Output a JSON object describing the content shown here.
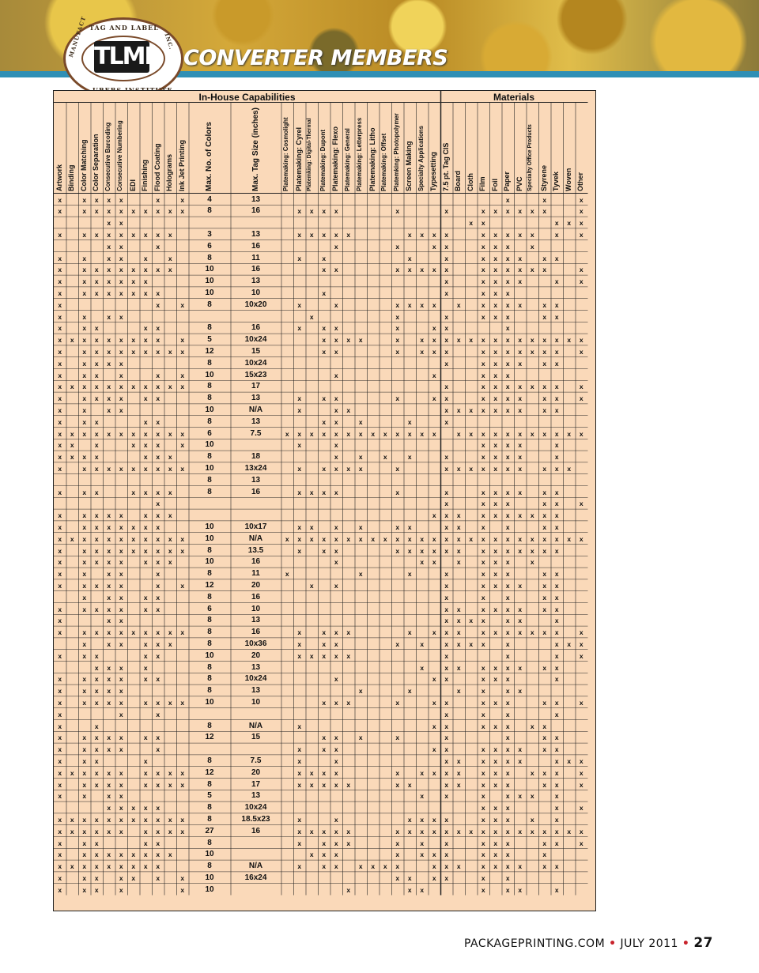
{
  "header": {
    "title": "CONVERTER MEMBERS",
    "logo_top": "TAG AND LABEL",
    "logo_bottom": "URERS INSTITUTE",
    "logo_left": "MANUFACT",
    "logo_right": "INC.",
    "logo_mark": "TLMI"
  },
  "table": {
    "group_capabilities": "In-House Capabilities",
    "group_materials": "Materials",
    "columns": [
      "Artwork",
      "Binding",
      "Color Matching",
      "Color Separation",
      "Consecutive Barcoding",
      "Consecutive Numbering",
      "EDI",
      "Finishing",
      "Flood Coating",
      "Holograms",
      "Ink Jet Printing",
      "Max. No. of Colors",
      "Max. Tag Size (inches)",
      "Platemaking: Cosmolight",
      "Platemaking: Cyrel",
      "Platemking: Digital-Thermal",
      "Platemaking: Dupont",
      "Platemaking: Flexo",
      "Platemaking: General",
      "Platemaking: Letterpress",
      "Platemaking: Litho",
      "Platemaking: Offset",
      "Platemking: Photopolymer",
      "Screen Making",
      "Specialty Applications",
      "Typesetting",
      "7.5 pt. Tag CIS",
      "Board",
      "Cloth",
      "Film",
      "Foil",
      "Paper",
      "PVC",
      "Specialty Office Products",
      "Styrene",
      "Tyvek",
      "Woven",
      "Other"
    ],
    "rows": [
      "x,,x,x,x,x,,,x,,x,4,13,,,,,,,,,,,,,,,,,,,x,,,x,,,x",
      "x,,x,x,x,x,x,x,x,x,x,8,16,,x,x,x,x,,,,,x,,,,x,,,x,x,x,x,x,x,,,x",
      ",,,,x,x,,,,,,,,,,,,,,,,,,,,,,,x,x,,,,,,x,x,x",
      "x,,x,x,x,x,x,x,x,x,,3,13,,x,x,x,x,x,,,,,x,x,x,x,,,x,x,x,x,x,,x,,x",
      ",,,,x,x,,,x,,,6,16,,,,,x,,,,,x,,,x,x,,,x,x,x,,x,,,,",
      "x,,x,,x,x,,x,,x,,8,11,,x,,x,,,,,,,x,,,x,,,x,x,x,x,,x,x,,",
      "x,,x,x,x,x,x,x,x,x,,10,16,,,,x,x,,,,,x,x,x,x,x,,,x,x,x,x,x,x,,,x",
      "x,,x,x,x,x,x,x,,,,10,13,,,,,,,,,,,,,,x,,,x,x,x,x,,,x,,x",
      "x,,x,x,x,x,x,x,x,,,10,10,,,,x,,,,,,,,,,x,,,x,x,x,,,,,,",
      "x,,,,,,,,x,,x,8,10x20,,x,,,x,,,,,x,x,x,x,,x,,x,x,x,x,,x,x,,",
      "x,,x,,x,x,,,,,,,,,,x,,,,,,,x,,,,x,,,x,x,x,,,x,x,,",
      "x,,x,x,,,,x,x,,,8,16,,x,,x,x,,,,,x,,,x,x,,,,,x,,,,,,",
      "x,x,x,x,x,x,x,x,x,,x,5,10x24,,,,x,x,x,x,,,x,,x,x,x,x,x,x,x,x,x,x,x,x,x,x",
      "x,,x,x,x,x,x,x,x,x,x,12,15,,,,x,x,,,,,x,,x,x,x,,,x,x,x,x,x,x,x,,x",
      "x,,x,x,x,x,,,,,,8,10x24,,,,,,,,,,,,,,x,,,x,x,x,x,,x,x,,",
      "x,,x,x,,x,,,x,,x,10,15x23,,,,,x,,,,,,,,x,,,,x,x,x,,,,,,",
      "x,x,x,x,x,x,x,x,x,x,x,8,17,,,,,,,,,,,,,,x,,,x,x,x,x,x,x,x,,x",
      "x,,x,x,x,x,,x,x,,,8,13,,x,,x,x,,,,,x,,,x,x,,,x,x,x,x,,x,x,,x",
      "x,,x,,x,x,,,,,,10,N/A,,x,,,x,x,,,,,,,,x,x,x,x,x,x,x,,x,x,,",
      "x,,x,x,,,,x,x,,,8,13,,,,x,x,,x,,,,x,,,x,,,,,,,,,,,",
      "x,x,x,x,x,x,x,x,x,x,x,6,7.5,x,x,x,x,x,x,x,x,x,x,x,x,x,,x,x,x,x,x,x,x,x,x,x,x",
      "x,x,,x,,,x,x,x,,x,10,,,x,,,x,,,,,,,,,,,,x,x,x,x,,,x,,",
      "x,x,x,x,,,,x,x,x,,8,18,,,,,x,,x,,x,,x,,,x,,,x,x,x,x,,,x,,",
      "x,,x,x,x,x,x,x,x,x,x,10,13x24,,x,,x,x,x,x,,,x,,,,x,x,x,x,x,x,x,,x,x,x,",
      ",,,,,,,,,,,8,13,,,,,,,,,,,,,,,,,,,,,,,,,",
      "x,,x,x,,,x,x,x,x,,8,16,,x,x,x,x,,,,,x,,,,x,,,x,x,x,x,,x,x,,",
      ",,,,,,,,x,,,,,,,,,,,,,,,,,,x,,,x,x,x,,,x,x,,x",
      "x,,x,x,x,x,,x,x,x,,,,,,,,,,,,,,,,x,x,x,,x,x,x,x,x,x,x,,",
      "x,,x,x,x,x,x,x,x,,,10,10x17,,x,x,,x,,x,,,x,x,,,x,x,,x,,x,,,x,x,,",
      "x,x,x,x,x,x,x,x,x,x,x,10,N/A,x,x,x,x,x,x,x,x,x,x,x,x,x,x,x,x,x,x,x,x,x,x,x,x,x",
      "x,,x,x,x,x,x,x,x,x,x,8,13.5,,x,,x,x,,,,,x,x,x,x,x,x,,x,x,x,x,x,x,x,,",
      "x,,x,x,x,x,,x,x,x,,10,16,,,,,x,,,,,,,x,x,,x,,x,x,x,,x,,,,",
      "x,,x,,x,x,,,x,,,8,11,x,,,,,,x,,,,x,,,x,,,x,x,x,,,x,x,,",
      "x,,x,x,x,x,,,x,,x,12,20,,,x,,x,,,,,,,,,x,,,x,x,x,x,,x,x,,",
      ",,x,,x,x,,x,x,,,8,16,,,,,,,,,,,,,,x,,,x,,x,,,x,x,,",
      "x,,x,x,x,x,,x,x,,,6,10,,,,,,,,,,,,,,x,x,,x,x,x,x,,x,x,,",
      "x,,,,x,x,,,,,,8,13,,,,,,,,,,,,,,x,x,x,x,,x,x,,,x,,",
      "x,,x,x,x,x,x,x,x,x,x,8,16,,x,,x,x,x,,,,,x,,x,x,x,,x,x,x,x,x,x,x,,x",
      ",,x,,x,x,,x,x,x,,8,10x36,,x,,x,x,,,,,x,,x,,x,x,x,x,,x,,,,x,x,x",
      "x,,x,x,,,,x,x,,,10,20,,x,x,x,x,x,,,,,,,,x,,,,,x,,,,x,,x",
      ",,,x,x,x,,x,,,,8,13,,,,,,,,,,,,x,,x,x,,x,x,x,x,,x,x,,",
      "x,,x,x,x,x,,x,x,,,8,10x24,,,,,x,,,,,,,,x,x,,,x,x,x,,,,x,,",
      "x,,x,x,x,x,,,,,,8,13,,,,,,,x,,,,x,,,,x,,x,,x,x,,,,,",
      "x,,x,x,x,x,,x,x,x,x,10,10,,,,x,x,x,,,,x,,,x,x,,,x,x,x,,,x,x,,x",
      "x,,,,,x,,,x,,,,,,,,,,,,,,,,,,x,,,x,,x,,,,x,,",
      "x,,,x,,,,,,,,8,N/A,,x,,,,,,,,,,,x,x,,,x,x,x,,x,x,,,",
      "x,,x,x,x,x,,x,x,,,12,15,,,,x,x,,x,,,x,,,,x,,,,,x,,,x,x,,",
      "x,,x,x,x,x,,,x,,,,,,x,,x,x,,,,,,,,x,x,,,x,x,x,x,,x,x,,",
      "x,,x,x,,,,x,,,,8,7.5,,x,,,x,,,,,,,,,x,x,,x,x,x,x,,,x,x,x",
      "x,x,x,x,x,x,,x,x,x,x,12,20,,x,x,x,x,,,,,x,,x,x,x,x,,x,x,x,,x,x,x,,x",
      "x,,x,x,x,x,,x,x,x,x,8,17,,x,x,x,x,x,,,,x,x,,,x,x,,x,x,x,,,x,x,,x",
      "x,,x,,x,x,,,,,,5,13,,,,,,,,,,,,x,,x,,,x,,x,x,x,,x,,",
      ",,,,x,x,x,x,x,,,8,10x24,,,,,,,,,,,,,,,,,x,x,x,,,,x,,x",
      "x,x,x,x,x,x,x,x,x,x,x,8,18.5x23,,x,,,x,,,,,,x,x,x,x,,,x,x,x,,x,,x,,",
      "x,x,x,x,x,x,,x,x,x,x,27,16,,x,x,x,x,x,,,,x,x,x,x,x,x,x,x,x,x,x,x,x,x,x,x",
      "x,,x,x,,,,x,x,,,8,,,x,,x,x,x,,,,x,,x,,x,,,x,x,x,,,x,x,,x",
      "x,,x,x,x,x,x,x,x,x,,10,,,,x,x,x,,,,,x,,x,x,x,,,x,x,x,,,x,,,",
      "x,x,x,x,x,x,x,x,x,,,8,N/A,,x,,x,x,,x,x,x,x,,,x,x,x,,x,x,x,x,,x,x,,",
      "x,,x,x,,x,x,,x,,x,10,16x24,,,,,,,,,,x,x,,x,x,,,x,,x,,,,,,",
      "x,,x,x,,x,,,,,x,10,,,,,,,x,,,,,x,x,,,,,x,,x,x,,,x,,"
    ]
  },
  "footer": {
    "site": "PACKAGEPRINTING.COM",
    "sep": "•",
    "date": "JULY 2011",
    "page": "27"
  },
  "colors": {
    "table_bg": "#fad9b9",
    "banner_strip": "#2f8fb5",
    "logo_border": "#7a4a2a",
    "footer_dot": "#c8232c"
  }
}
